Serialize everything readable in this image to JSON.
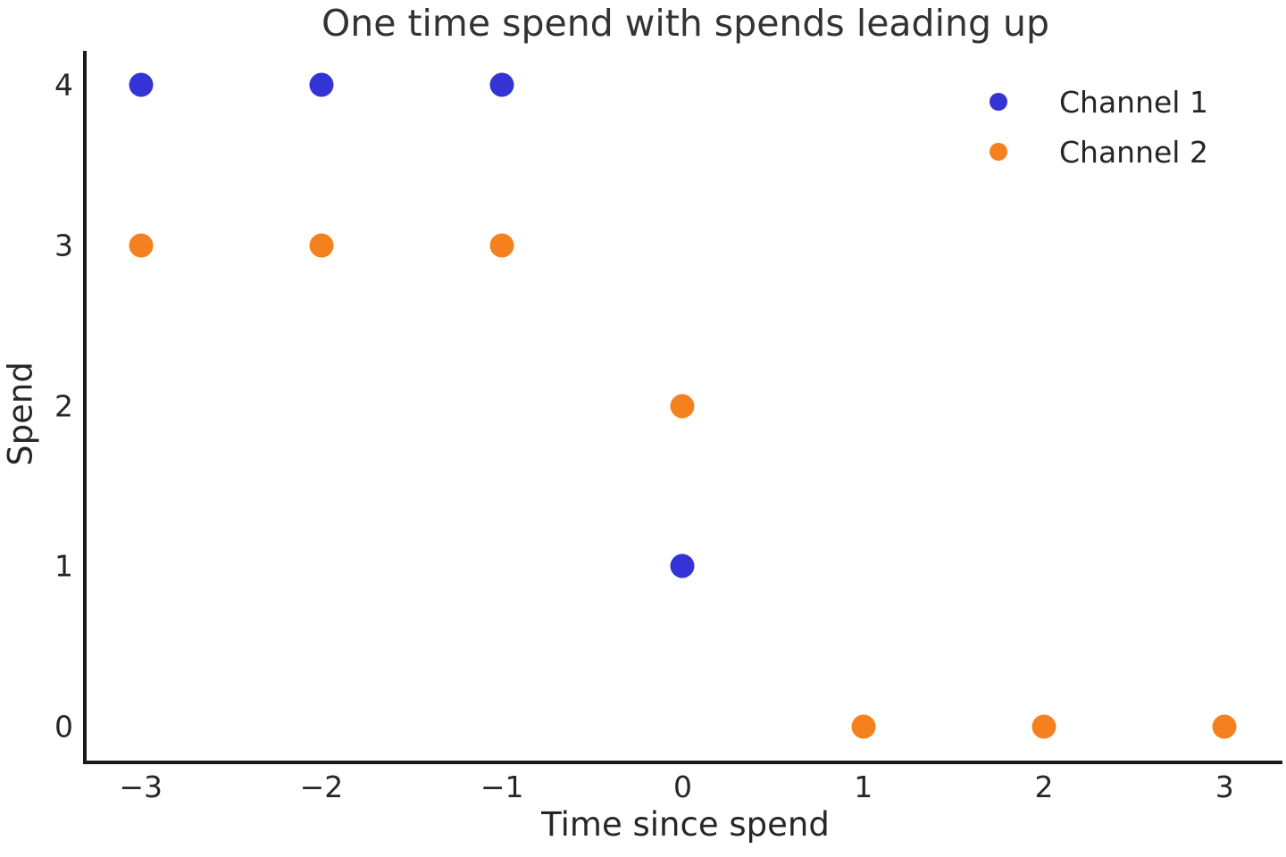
{
  "chart_data": {
    "type": "scatter",
    "title": "One time spend with spends leading up",
    "xlabel": "Time since spend",
    "ylabel": "Spend",
    "xticks": [
      -3,
      -2,
      -1,
      0,
      1,
      2,
      3
    ],
    "yticks": [
      0,
      1,
      2,
      3,
      4
    ],
    "xlim": [
      -3.31,
      3.34
    ],
    "ylim": [
      -0.21,
      4.21
    ],
    "grid": false,
    "legend_position": "upper right",
    "series": [
      {
        "name": "Channel 1",
        "color": "#3333d6",
        "points": [
          [
            -3,
            4
          ],
          [
            -2,
            4
          ],
          [
            -1,
            4
          ],
          [
            0,
            1
          ]
        ]
      },
      {
        "name": "Channel 2",
        "color": "#f5801e",
        "points": [
          [
            -3,
            3
          ],
          [
            -2,
            3
          ],
          [
            -1,
            3
          ],
          [
            0,
            2
          ],
          [
            1,
            0
          ],
          [
            2,
            0
          ],
          [
            3,
            0
          ]
        ]
      }
    ]
  }
}
